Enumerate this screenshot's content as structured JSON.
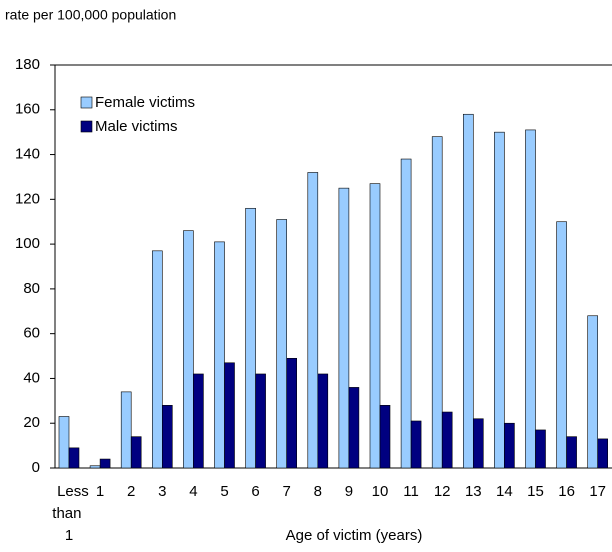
{
  "chart_data": {
    "type": "bar",
    "y_axis_label": "rate per 100,000 population",
    "x_axis_label": "Age of victim (years)",
    "categories": [
      "Less than 1",
      "1",
      "2",
      "3",
      "4",
      "5",
      "6",
      "7",
      "8",
      "9",
      "10",
      "11",
      "12",
      "13",
      "14",
      "15",
      "16",
      "17"
    ],
    "series": [
      {
        "name": "Female victims",
        "color": "#99ccff",
        "values": [
          23,
          1,
          34,
          97,
          106,
          101,
          116,
          111,
          132,
          125,
          127,
          138,
          148,
          158,
          150,
          151,
          110,
          68
        ]
      },
      {
        "name": "Male victims",
        "color": "#000080",
        "values": [
          9,
          4,
          14,
          28,
          42,
          47,
          42,
          49,
          42,
          36,
          28,
          21,
          25,
          22,
          20,
          17,
          14,
          13
        ]
      }
    ],
    "ylim": [
      0,
      180
    ],
    "yticks": [
      0,
      20,
      40,
      60,
      80,
      100,
      120,
      140,
      160,
      180
    ],
    "grid": false,
    "legend": "upper left"
  }
}
